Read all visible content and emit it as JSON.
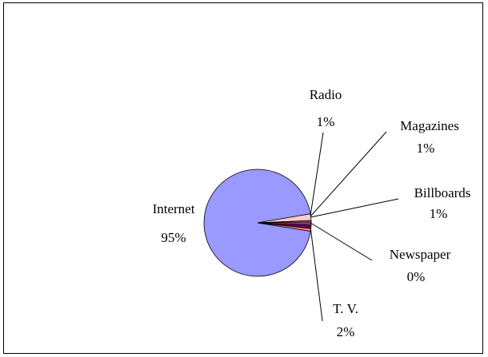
{
  "chart_data": {
    "type": "pie",
    "title": "",
    "legend": "none",
    "slices": [
      {
        "label": "Internet",
        "value_label": "95%",
        "value": 95,
        "color": "#9999ff"
      },
      {
        "label": "T. V.",
        "value_label": "2%",
        "value": 2,
        "color": "#ffcccc"
      },
      {
        "label": "Newspaper",
        "value_label": "0%",
        "value": 0.4,
        "color": "#cc99cc"
      },
      {
        "label": "Billboards",
        "value_label": "1%",
        "value": 1,
        "color": "#993366"
      },
      {
        "label": "Magazines",
        "value_label": "1%",
        "value": 1,
        "color": "#660066"
      },
      {
        "label": "Radio",
        "value_label": "1%",
        "value": 0.8,
        "color": "#ff8080"
      }
    ]
  }
}
